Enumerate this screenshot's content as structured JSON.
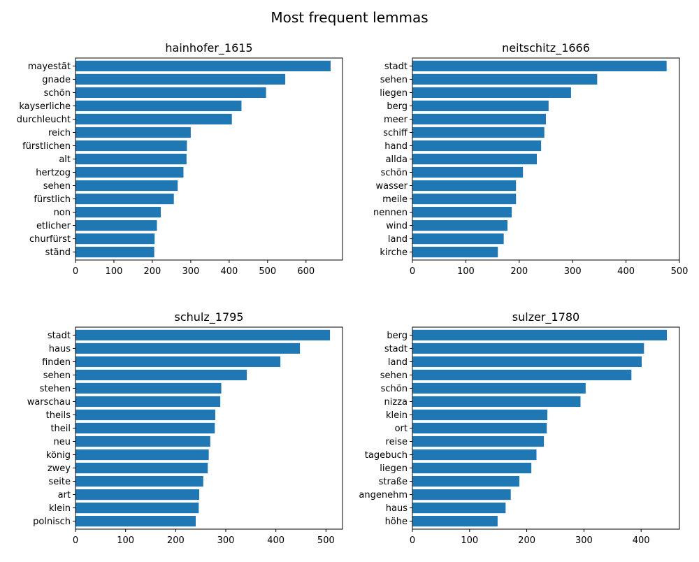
{
  "figure": {
    "title": "Most frequent lemmas"
  },
  "style": {
    "bar_color": "#1f77b4",
    "axis_color": "#000000",
    "background": "#ffffff"
  },
  "chart_data": [
    {
      "type": "bar",
      "orientation": "horizontal",
      "title": "hainhofer_1615",
      "xlabel": "",
      "ylabel": "",
      "xlim": [
        0,
        695
      ],
      "xticks": [
        0,
        100,
        200,
        300,
        400,
        500,
        600
      ],
      "grid": false,
      "categories": [
        "mayestät",
        "gnade",
        "schön",
        "kayserliche",
        "durchleucht",
        "reich",
        "fürstlichen",
        "alt",
        "hertzog",
        "sehen",
        "fürstlich",
        "non",
        "etlicher",
        "churfürst",
        "ständ"
      ],
      "values": [
        664,
        546,
        496,
        432,
        407,
        300,
        290,
        289,
        281,
        266,
        256,
        222,
        212,
        206,
        205
      ]
    },
    {
      "type": "bar",
      "orientation": "horizontal",
      "title": "neitschitz_1666",
      "xlabel": "",
      "ylabel": "",
      "xlim": [
        0,
        500
      ],
      "xticks": [
        0,
        100,
        200,
        300,
        400,
        500
      ],
      "grid": false,
      "categories": [
        "stadt",
        "sehen",
        "liegen",
        "berg",
        "meer",
        "schiff",
        "hand",
        "allda",
        "schön",
        "wasser",
        "meile",
        "nennen",
        "wind",
        "land",
        "kirche"
      ],
      "values": [
        476,
        346,
        297,
        255,
        250,
        247,
        241,
        233,
        207,
        194,
        194,
        186,
        178,
        171,
        160
      ]
    },
    {
      "type": "bar",
      "orientation": "horizontal",
      "title": "schulz_1795",
      "xlabel": "",
      "ylabel": "",
      "xlim": [
        0,
        533
      ],
      "xticks": [
        0,
        100,
        200,
        300,
        400,
        500
      ],
      "grid": false,
      "categories": [
        "stadt",
        "haus",
        "finden",
        "sehen",
        "stehen",
        "warschau",
        "theils",
        "theil",
        "neu",
        "könig",
        "zwey",
        "seite",
        "art",
        "klein",
        "polnisch"
      ],
      "values": [
        508,
        448,
        409,
        342,
        291,
        289,
        279,
        278,
        269,
        266,
        264,
        255,
        247,
        246,
        240
      ]
    },
    {
      "type": "bar",
      "orientation": "horizontal",
      "title": "sulzer_1780",
      "xlabel": "",
      "ylabel": "",
      "xlim": [
        0,
        467
      ],
      "xticks": [
        0,
        100,
        200,
        300,
        400
      ],
      "grid": false,
      "categories": [
        "berg",
        "stadt",
        "land",
        "sehen",
        "schön",
        "nizza",
        "klein",
        "ort",
        "reise",
        "tagebuch",
        "liegen",
        "straße",
        "angenehm",
        "haus",
        "höhe"
      ],
      "values": [
        445,
        405,
        401,
        383,
        303,
        294,
        236,
        235,
        230,
        217,
        208,
        187,
        172,
        163,
        149
      ]
    }
  ]
}
